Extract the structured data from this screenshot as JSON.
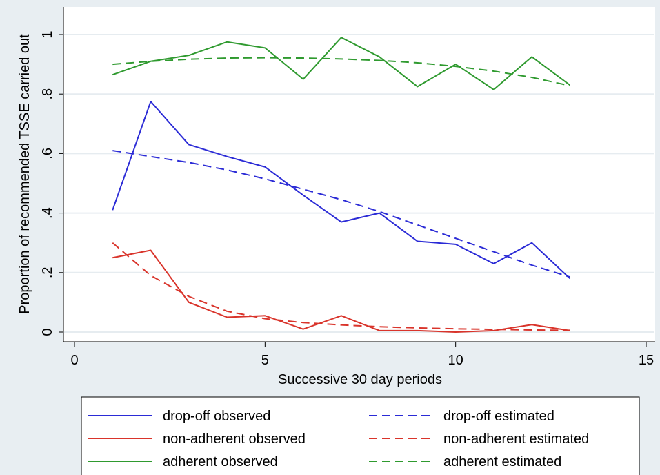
{
  "chart_data": {
    "type": "line",
    "title": "",
    "xlabel": "Successive 30 day periods",
    "ylabel": "Proportion of recommended TSSE carried out",
    "xlim": [
      0,
      15
    ],
    "ylim": [
      0,
      1
    ],
    "x_ticks": [
      0,
      5,
      10,
      15
    ],
    "x_tick_labels": [
      "0",
      "5",
      "10",
      "15"
    ],
    "y_ticks": [
      0,
      0.2,
      0.4,
      0.6,
      0.8,
      1
    ],
    "y_tick_labels": [
      "0",
      ".2",
      ".4",
      ".6",
      ".8",
      "1"
    ],
    "grid": true,
    "legend_position": "bottom",
    "x": [
      1,
      2,
      3,
      4,
      5,
      6,
      7,
      8,
      9,
      10,
      11,
      12,
      13
    ],
    "series": [
      {
        "name": "drop-off observed",
        "color": "#2b2bd6",
        "dash": false,
        "values": [
          0.41,
          0.775,
          0.63,
          0.59,
          0.555,
          0.46,
          0.37,
          0.4,
          0.305,
          0.295,
          0.23,
          0.3,
          0.18
        ]
      },
      {
        "name": "drop-off estimated",
        "color": "#2b2bd6",
        "dash": true,
        "values": [
          0.61,
          0.59,
          0.57,
          0.545,
          0.515,
          0.48,
          0.445,
          0.405,
          0.36,
          0.315,
          0.27,
          0.225,
          0.185
        ]
      },
      {
        "name": "non-adherent observed",
        "color": "#d9342b",
        "dash": false,
        "values": [
          0.25,
          0.275,
          0.1,
          0.05,
          0.055,
          0.01,
          0.055,
          0.005,
          0.005,
          0.0,
          0.005,
          0.025,
          0.005
        ]
      },
      {
        "name": "non-adherent estimated",
        "color": "#d9342b",
        "dash": true,
        "values": [
          0.3,
          0.19,
          0.12,
          0.07,
          0.045,
          0.032,
          0.024,
          0.018,
          0.014,
          0.011,
          0.009,
          0.007,
          0.006
        ]
      },
      {
        "name": "adherent observed",
        "color": "#2f9a2f",
        "dash": false,
        "values": [
          0.865,
          0.91,
          0.93,
          0.975,
          0.955,
          0.85,
          0.99,
          0.925,
          0.825,
          0.9,
          0.815,
          0.925,
          0.83
        ]
      },
      {
        "name": "adherent estimated",
        "color": "#2f9a2f",
        "dash": true,
        "values": [
          0.9,
          0.91,
          0.917,
          0.921,
          0.922,
          0.921,
          0.918,
          0.913,
          0.905,
          0.893,
          0.877,
          0.856,
          0.828
        ]
      }
    ]
  }
}
